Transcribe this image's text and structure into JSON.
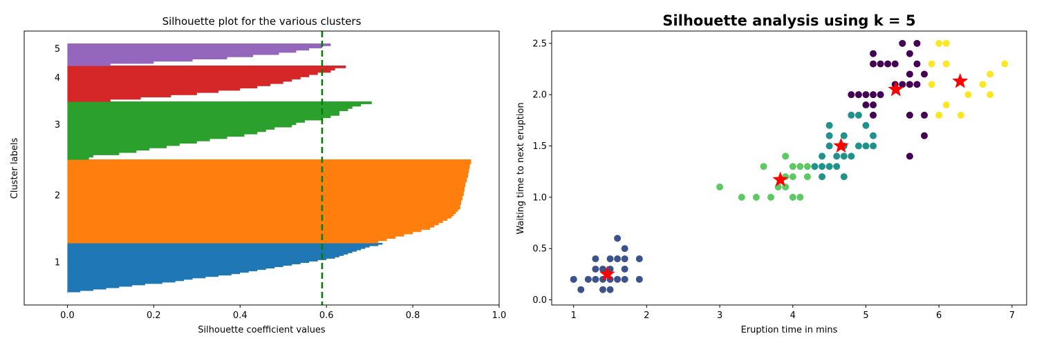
{
  "figure": {
    "left_title": "Silhouette plot for the various clusters",
    "right_title": "Silhouette analysis using k = 5"
  },
  "chart_data": [
    {
      "type": "bar",
      "orientation": "horizontal",
      "title": "Silhouette plot for the various clusters",
      "xlabel": "Silhouette coefficient values",
      "ylabel": "Cluster labels",
      "xlim": [
        -0.1,
        1.0
      ],
      "x_ticks": [
        0.0,
        0.2,
        0.4,
        0.6,
        0.8,
        1.0
      ],
      "x_tick_labels": [
        "0.0",
        "0.2",
        "0.4",
        "0.6",
        "0.8",
        "1.0"
      ],
      "average_silhouette_line": 0.59,
      "average_line_color": "#008000",
      "clusters": [
        {
          "label": "1",
          "color": "#1f77b4",
          "values": [
            0.73,
            0.72,
            0.7,
            0.69,
            0.68,
            0.67,
            0.66,
            0.65,
            0.64,
            0.63,
            0.62,
            0.6,
            0.58,
            0.56,
            0.54,
            0.52,
            0.5,
            0.48,
            0.46,
            0.44,
            0.42,
            0.4,
            0.38,
            0.35,
            0.32,
            0.29,
            0.27,
            0.25,
            0.22,
            0.18,
            0.15,
            0.12,
            0.09,
            0.06,
            0.03,
            0.0
          ]
        },
        {
          "label": "2",
          "color": "#ff7f0e",
          "values": [
            0.935,
            0.935,
            0.932,
            0.932,
            0.93,
            0.93,
            0.928,
            0.928,
            0.925,
            0.925,
            0.922,
            0.922,
            0.92,
            0.92,
            0.918,
            0.918,
            0.915,
            0.915,
            0.912,
            0.912,
            0.91,
            0.91,
            0.905,
            0.9,
            0.895,
            0.89,
            0.88,
            0.87,
            0.86,
            0.85,
            0.84,
            0.82,
            0.8,
            0.78,
            0.76,
            0.74,
            0.72
          ]
        },
        {
          "label": "3",
          "color": "#2ca02c",
          "values": [
            0.705,
            0.68,
            0.66,
            0.65,
            0.63,
            0.63,
            0.61,
            0.59,
            0.55,
            0.53,
            0.52,
            0.48,
            0.46,
            0.44,
            0.41,
            0.37,
            0.33,
            0.3,
            0.26,
            0.23,
            0.19,
            0.16,
            0.12,
            0.06,
            0.05
          ]
        },
        {
          "label": "4",
          "color": "#d62728",
          "values": [
            0.645,
            0.62,
            0.61,
            0.58,
            0.56,
            0.54,
            0.52,
            0.5,
            0.47,
            0.44,
            0.4,
            0.35,
            0.3,
            0.24,
            0.17,
            0.1
          ]
        },
        {
          "label": "5",
          "color": "#9467bd",
          "values": [
            0.61,
            0.59,
            0.56,
            0.53,
            0.49,
            0.43,
            0.37,
            0.29,
            0.2,
            0.1
          ]
        }
      ]
    },
    {
      "type": "scatter",
      "title": "Silhouette analysis using k = 5",
      "xlabel": "Eruption time in mins",
      "ylabel": "Waiting time to next eruption",
      "xlim": [
        0.7,
        7.2
      ],
      "ylim": [
        -0.05,
        2.62
      ],
      "x_ticks": [
        1,
        2,
        3,
        4,
        5,
        6,
        7
      ],
      "x_tick_labels": [
        "1",
        "2",
        "3",
        "4",
        "5",
        "6",
        "7"
      ],
      "y_ticks": [
        0.0,
        0.5,
        1.0,
        1.5,
        2.0,
        2.5
      ],
      "y_tick_labels": [
        "0.0",
        "0.5",
        "1.0",
        "1.5",
        "2.0",
        "2.5"
      ],
      "series": [
        {
          "color": "#3b528b",
          "points": [
            [
              1.0,
              0.2
            ],
            [
              1.1,
              0.1
            ],
            [
              1.2,
              0.2
            ],
            [
              1.3,
              0.2
            ],
            [
              1.3,
              0.3
            ],
            [
              1.3,
              0.4
            ],
            [
              1.4,
              0.1
            ],
            [
              1.4,
              0.2
            ],
            [
              1.4,
              0.3
            ],
            [
              1.5,
              0.1
            ],
            [
              1.5,
              0.2
            ],
            [
              1.5,
              0.3
            ],
            [
              1.5,
              0.4
            ],
            [
              1.6,
              0.2
            ],
            [
              1.6,
              0.4
            ],
            [
              1.6,
              0.6
            ],
            [
              1.7,
              0.2
            ],
            [
              1.7,
              0.3
            ],
            [
              1.7,
              0.4
            ],
            [
              1.7,
              0.5
            ],
            [
              1.9,
              0.2
            ],
            [
              1.9,
              0.4
            ]
          ]
        },
        {
          "color": "#5ec962",
          "points": [
            [
              3.0,
              1.1
            ],
            [
              3.3,
              1.0
            ],
            [
              3.5,
              1.0
            ],
            [
              3.6,
              1.3
            ],
            [
              3.7,
              1.0
            ],
            [
              3.8,
              1.1
            ],
            [
              3.9,
              1.1
            ],
            [
              3.9,
              1.2
            ],
            [
              3.9,
              1.4
            ],
            [
              4.0,
              1.0
            ],
            [
              4.0,
              1.2
            ],
            [
              4.0,
              1.3
            ],
            [
              4.1,
              1.0
            ],
            [
              4.1,
              1.3
            ],
            [
              4.2,
              1.2
            ],
            [
              4.2,
              1.3
            ]
          ]
        },
        {
          "color": "#21918c",
          "points": [
            [
              4.3,
              1.3
            ],
            [
              4.4,
              1.2
            ],
            [
              4.4,
              1.3
            ],
            [
              4.4,
              1.4
            ],
            [
              4.5,
              1.3
            ],
            [
              4.5,
              1.5
            ],
            [
              4.5,
              1.6
            ],
            [
              4.5,
              1.7
            ],
            [
              4.6,
              1.3
            ],
            [
              4.6,
              1.4
            ],
            [
              4.7,
              1.2
            ],
            [
              4.7,
              1.4
            ],
            [
              4.7,
              1.5
            ],
            [
              4.7,
              1.6
            ],
            [
              4.8,
              1.4
            ],
            [
              4.8,
              1.8
            ],
            [
              4.9,
              1.5
            ],
            [
              4.9,
              1.8
            ],
            [
              5.0,
              1.5
            ],
            [
              5.0,
              1.7
            ],
            [
              5.1,
              1.5
            ],
            [
              5.1,
              1.6
            ]
          ]
        },
        {
          "color": "#440154",
          "points": [
            [
              4.8,
              2.0
            ],
            [
              4.9,
              2.0
            ],
            [
              5.0,
              2.0
            ],
            [
              5.0,
              1.9
            ],
            [
              5.1,
              1.8
            ],
            [
              5.1,
              1.9
            ],
            [
              5.1,
              2.0
            ],
            [
              5.1,
              2.3
            ],
            [
              5.1,
              2.4
            ],
            [
              5.2,
              2.0
            ],
            [
              5.2,
              2.3
            ],
            [
              5.3,
              2.3
            ],
            [
              5.4,
              2.1
            ],
            [
              5.4,
              2.3
            ],
            [
              5.5,
              2.1
            ],
            [
              5.5,
              2.5
            ],
            [
              5.6,
              1.4
            ],
            [
              5.6,
              1.8
            ],
            [
              5.6,
              2.1
            ],
            [
              5.6,
              2.2
            ],
            [
              5.6,
              2.4
            ],
            [
              5.7,
              2.1
            ],
            [
              5.7,
              2.3
            ],
            [
              5.7,
              2.5
            ],
            [
              5.8,
              1.6
            ],
            [
              5.8,
              1.8
            ],
            [
              5.8,
              2.2
            ]
          ]
        },
        {
          "color": "#fde725",
          "points": [
            [
              5.9,
              2.1
            ],
            [
              5.9,
              2.3
            ],
            [
              6.0,
              1.8
            ],
            [
              6.0,
              2.5
            ],
            [
              6.1,
              1.9
            ],
            [
              6.1,
              2.3
            ],
            [
              6.1,
              2.5
            ],
            [
              6.3,
              1.8
            ],
            [
              6.4,
              2.0
            ],
            [
              6.6,
              2.1
            ],
            [
              6.7,
              2.0
            ],
            [
              6.7,
              2.2
            ],
            [
              6.9,
              2.3
            ]
          ]
        }
      ],
      "centroids": {
        "marker": "star",
        "color": "#ff0000",
        "points": [
          [
            1.46,
            0.25
          ],
          [
            3.83,
            1.17
          ],
          [
            4.66,
            1.5
          ],
          [
            5.41,
            2.05
          ],
          [
            6.29,
            2.13
          ]
        ]
      }
    }
  ]
}
